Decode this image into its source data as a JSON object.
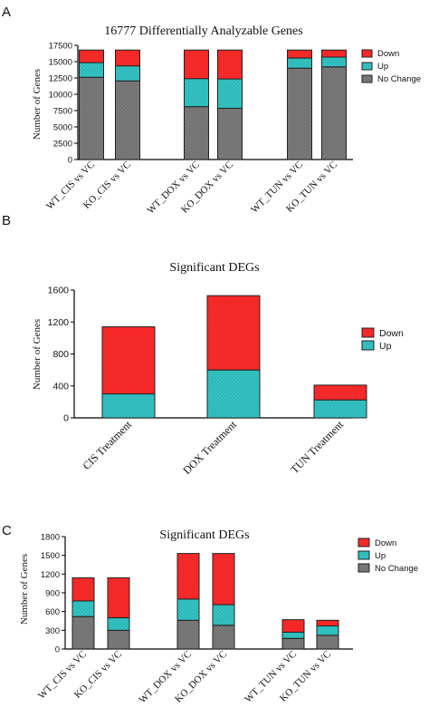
{
  "panels": [
    "A",
    "B",
    "C"
  ],
  "colors": {
    "down": "#ff2a2a",
    "up": "#33c4c4",
    "no_change": "#7a7a7a",
    "border": "#222222"
  },
  "chart_data": [
    {
      "type": "bar",
      "stacked": true,
      "title": "16777 Differentially Analyzable Genes",
      "ylabel": "Number of Genes",
      "ylim": [
        0,
        17500
      ],
      "yticks": [
        "0",
        "2500",
        "5000",
        "7500",
        "10000",
        "12500",
        "15000",
        "17500"
      ],
      "categories": [
        "WT_CIS vs VC",
        "KO_CIS vs VC",
        "WT_DOX vs VC",
        "KO_DOX vs VC",
        "WT_TUN vs VC",
        "KO_TUN vs VC"
      ],
      "series": [
        {
          "name": "No Change",
          "values": [
            12600,
            12050,
            8100,
            7850,
            14000,
            14200
          ]
        },
        {
          "name": "Up",
          "values": [
            2250,
            2300,
            4300,
            4500,
            1550,
            1500
          ]
        },
        {
          "name": "Down",
          "values": [
            1927,
            2427,
            4377,
            4427,
            1227,
            1077
          ]
        }
      ],
      "legend": [
        "Down",
        "Up",
        "No Change"
      ],
      "legend_position": "top-right"
    },
    {
      "type": "bar",
      "stacked": true,
      "title": "Significant DEGs",
      "ylabel": "Number of Genes",
      "ylim": [
        0,
        1600
      ],
      "yticks": [
        "0",
        "400",
        "800",
        "1200",
        "1600"
      ],
      "categories": [
        "CIS Treatment",
        "DOX Treatment",
        "TUN Treatment"
      ],
      "series": [
        {
          "name": "Up",
          "values": [
            300,
            600,
            225
          ]
        },
        {
          "name": "Down",
          "values": [
            840,
            930,
            185
          ]
        }
      ],
      "legend": [
        "Down",
        "Up"
      ],
      "legend_position": "top-right"
    },
    {
      "type": "bar",
      "stacked": true,
      "title": "Significant DEGs",
      "ylabel": "Number of Genes",
      "ylim": [
        0,
        1800
      ],
      "yticks": [
        "0",
        "300",
        "600",
        "900",
        "1200",
        "1500",
        "1800"
      ],
      "categories": [
        "WT_CIS vs VC",
        "KO_CIS vs VC",
        "WT_DOX vs VC",
        "KO_DOX vs VC",
        "WT_TUN vs VC",
        "KO_TUN vs VC"
      ],
      "series": [
        {
          "name": "No Change",
          "values": [
            520,
            300,
            460,
            380,
            170,
            220
          ]
        },
        {
          "name": "Up",
          "values": [
            250,
            200,
            340,
            330,
            100,
            150
          ]
        },
        {
          "name": "Down",
          "values": [
            370,
            640,
            730,
            820,
            200,
            90
          ]
        }
      ],
      "legend": [
        "Down",
        "Up",
        "No Change"
      ],
      "legend_position": "top-right"
    }
  ]
}
